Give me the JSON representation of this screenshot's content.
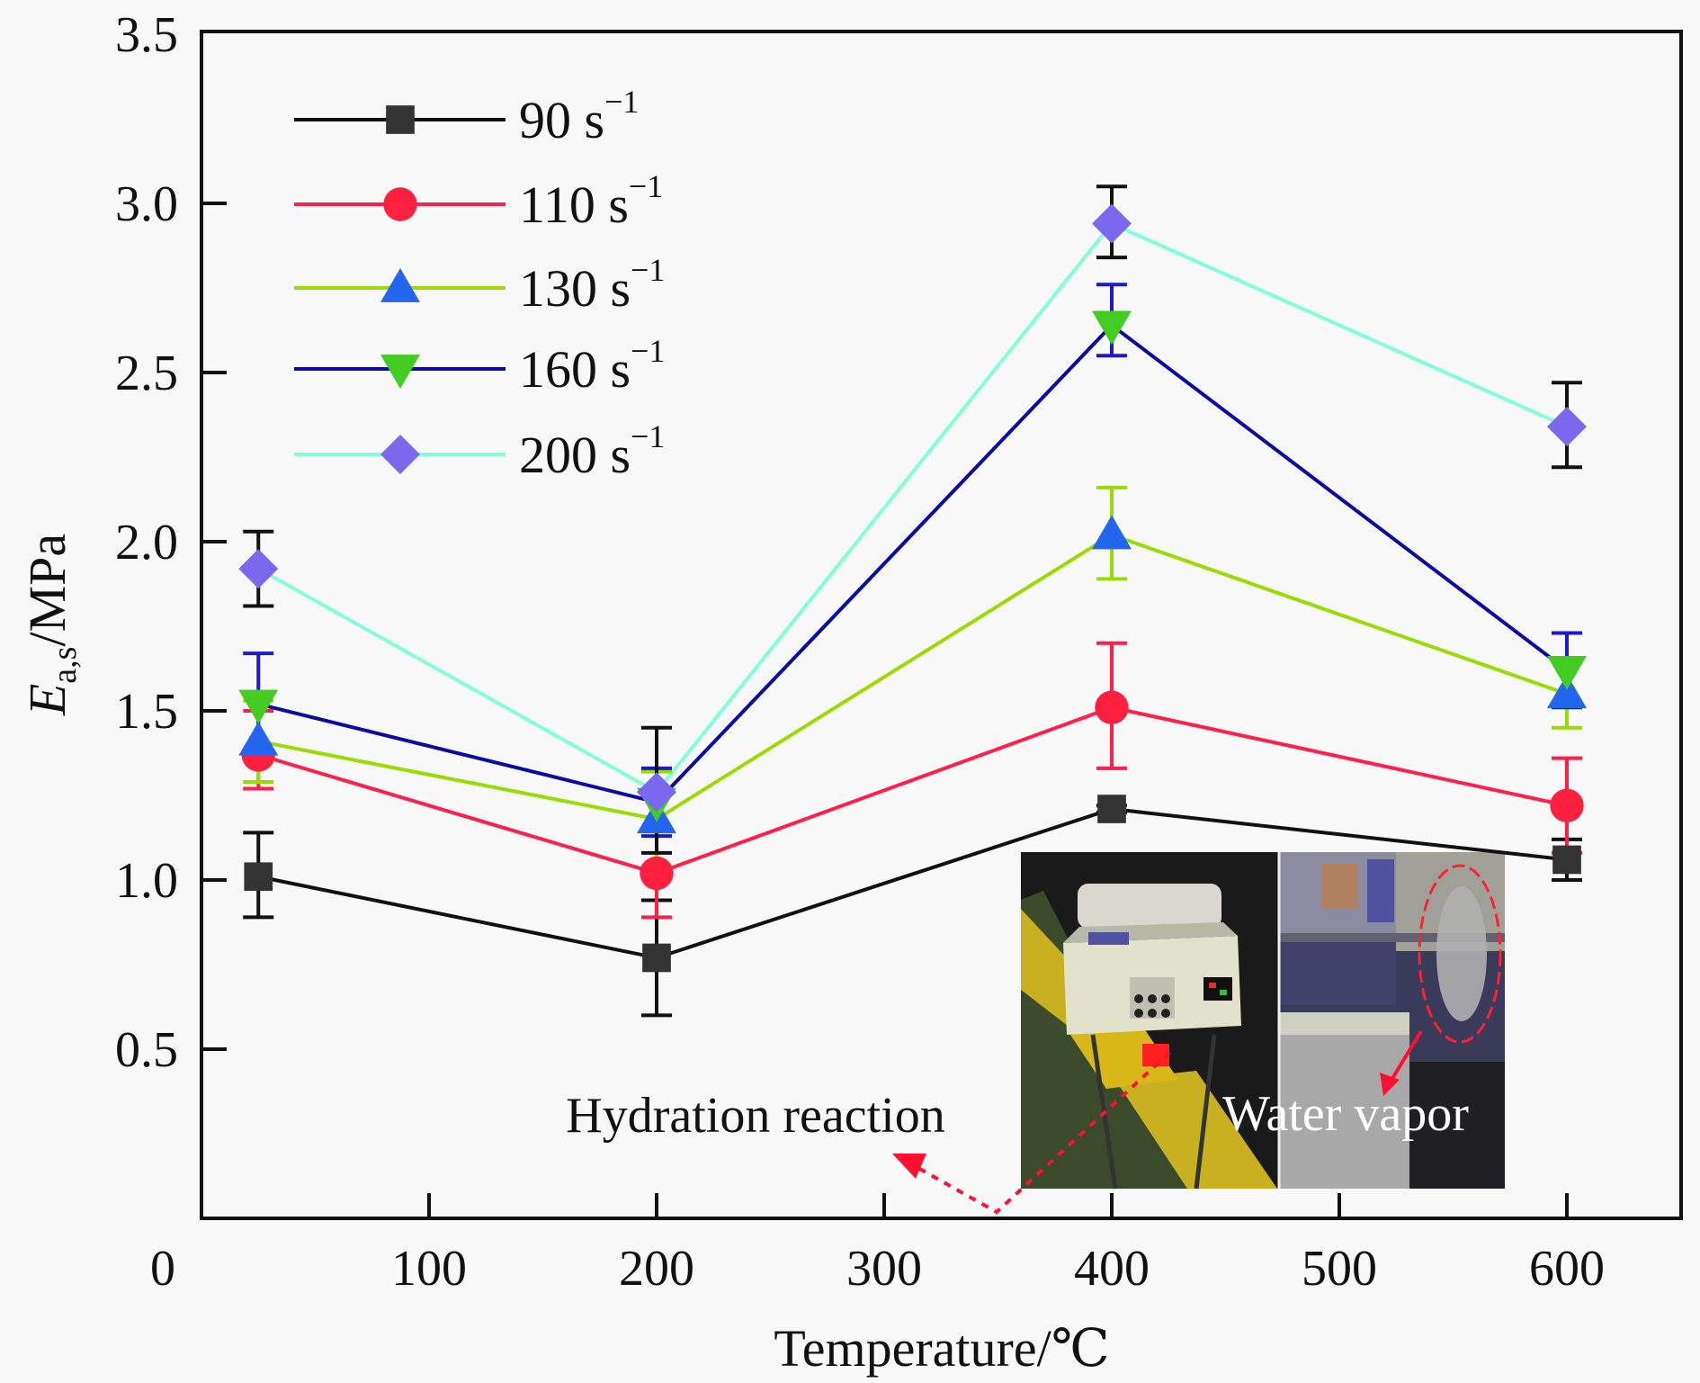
{
  "chart_data": {
    "type": "line",
    "title": "",
    "xlabel": "Temperature/℃",
    "ylabel": {
      "main": "E",
      "sub": "a,s",
      "unit": "/MPa"
    },
    "xlim": [
      0,
      650
    ],
    "ylim": [
      0,
      3.5
    ],
    "x_ticks": [
      100,
      200,
      300,
      400,
      500,
      600
    ],
    "y_ticks": [
      0.5,
      1.0,
      1.5,
      2.0,
      2.5,
      3.0,
      3.5
    ],
    "origin_label": "0",
    "grid": false,
    "legend_position": "top-left",
    "x": [
      25,
      200,
      400,
      600
    ],
    "series": [
      {
        "name": "90 s⁻¹",
        "label": "90 s",
        "sup": "−1",
        "line_color": "#111111",
        "marker": "square",
        "marker_color": "#333333",
        "error_color": "#111111",
        "values": [
          1.01,
          0.77,
          1.21,
          1.06
        ],
        "err_upper": [
          0.13,
          0.17,
          0.01,
          0.06
        ],
        "err_lower": [
          0.12,
          0.17,
          0.01,
          0.06
        ]
      },
      {
        "name": "110 s⁻¹",
        "label": "110 s",
        "sup": "−1",
        "line_color": "#ff1f48",
        "marker": "circle",
        "marker_color": "#ff2040",
        "error_color": "#ff1f48",
        "values": [
          1.37,
          1.02,
          1.51,
          1.22
        ],
        "err_upper": [
          0.13,
          0.13,
          0.19,
          0.14
        ],
        "err_lower": [
          0.1,
          0.13,
          0.18,
          0.14
        ]
      },
      {
        "name": "130 s⁻¹",
        "label": "130 s",
        "sup": "−1",
        "line_color": "#99dd00",
        "marker": "triangle-up",
        "marker_color": "#2266ee",
        "error_color": "#99dd00",
        "values": [
          1.41,
          1.18,
          2.02,
          1.55
        ],
        "err_upper": [
          0.12,
          0.14,
          0.14,
          0.1
        ],
        "err_lower": [
          0.12,
          0.14,
          0.13,
          0.1
        ]
      },
      {
        "name": "160 s⁻¹",
        "label": "160 s",
        "sup": "−1",
        "line_color": "#0a0aa8",
        "marker": "triangle-down",
        "marker_color": "#44cc22",
        "error_color": "#1a1acc",
        "values": [
          1.52,
          1.23,
          2.64,
          1.62
        ],
        "err_upper": [
          0.15,
          0.1,
          0.12,
          0.11
        ],
        "err_lower": [
          0.15,
          0.1,
          0.09,
          0.11
        ]
      },
      {
        "name": "200 s⁻¹",
        "label": "200 s",
        "sup": "−1",
        "line_color": "#80ffd8",
        "marker": "diamond",
        "marker_color": "#7b68ee",
        "error_color": "#111111",
        "values": [
          1.92,
          1.26,
          2.94,
          2.34
        ],
        "err_upper": [
          0.11,
          0.19,
          0.11,
          0.13
        ],
        "err_lower": [
          0.11,
          0.18,
          0.1,
          0.12
        ]
      }
    ],
    "annotations": [
      {
        "text": "Hydration reaction",
        "color": "#111111"
      },
      {
        "text": "Water vapor",
        "color": "#ffffff"
      }
    ],
    "inset_photo": {
      "description": "photographs of heating apparatus and water vapor",
      "arrow_color": "#ff1030"
    }
  }
}
